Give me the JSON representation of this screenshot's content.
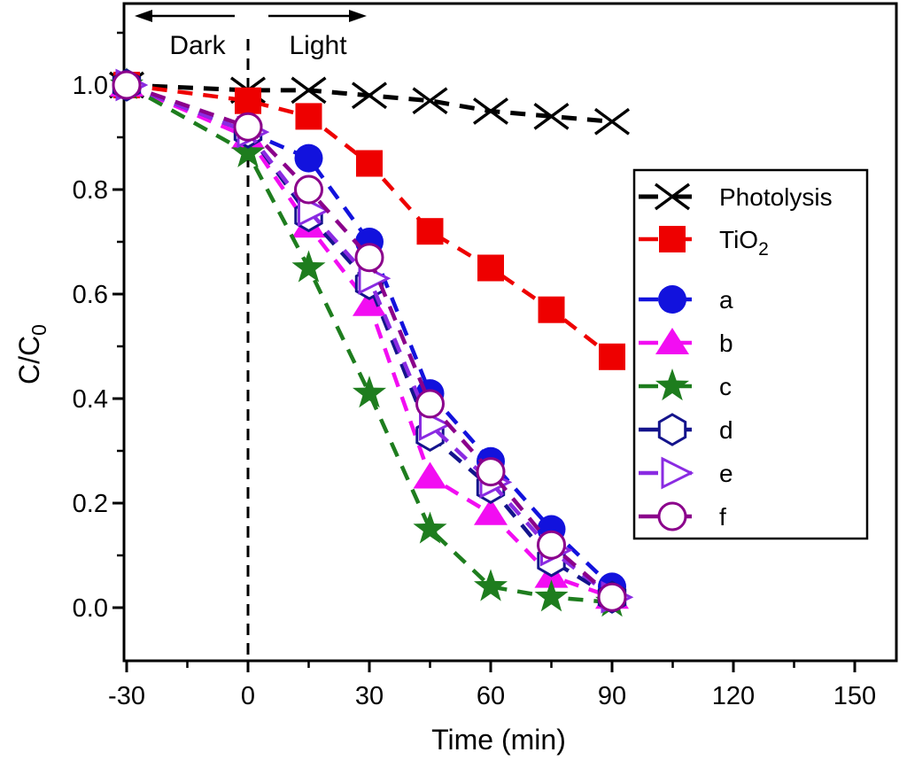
{
  "figure": {
    "background": "#ffffff",
    "frame_color": "#000000"
  },
  "chart_data": {
    "type": "line",
    "title": "",
    "xlabel": "Time (min)",
    "ylabel_main": "C/C",
    "ylabel_sub": "0",
    "xlim": [
      -33,
      160
    ],
    "ylim": [
      -0.1,
      1.15
    ],
    "grid": false,
    "x_major_ticks": [
      -30,
      0,
      30,
      60,
      90,
      120,
      150
    ],
    "x_minor_ticks": [
      -15,
      15,
      45,
      75,
      105,
      135
    ],
    "y_major_ticks": [
      0.0,
      0.2,
      0.4,
      0.6,
      0.8,
      1.0
    ],
    "y_minor_ticks": [
      0.1,
      0.3,
      0.5,
      0.7,
      0.9,
      1.1
    ],
    "annotations": {
      "dark": "Dark",
      "light": "Light",
      "divider_x": 0,
      "dark_arrow_direction": "left",
      "light_arrow_direction": "right"
    },
    "x": [
      -30,
      0,
      15,
      30,
      45,
      60,
      75,
      90
    ],
    "series": [
      {
        "name": "Photolysis",
        "label_main": "Photolysis",
        "label_sub": "",
        "color": "#000000",
        "marker": "cross-x",
        "line_width": 5,
        "values": [
          1.0,
          0.99,
          0.99,
          0.98,
          0.97,
          0.95,
          0.94,
          0.93
        ]
      },
      {
        "name": "TiO2",
        "label_main": "TiO",
        "label_sub": "2",
        "color": "#ee0000",
        "marker": "square-filled",
        "line_width": 4.5,
        "values": [
          1.0,
          0.97,
          0.94,
          0.85,
          0.72,
          0.65,
          0.57,
          0.48
        ]
      },
      {
        "name": "a",
        "label_main": "a",
        "label_sub": "",
        "color": "#1212dd",
        "marker": "circle-filled",
        "line_width": 4.5,
        "values": [
          1.0,
          0.91,
          0.86,
          0.7,
          0.41,
          0.28,
          0.15,
          0.04
        ]
      },
      {
        "name": "b",
        "label_main": "b",
        "label_sub": "",
        "color": "#f20df2",
        "marker": "triangle-up-filled",
        "line_width": 4.5,
        "values": [
          1.0,
          0.9,
          0.73,
          0.58,
          0.25,
          0.18,
          0.06,
          0.02
        ]
      },
      {
        "name": "c",
        "label_main": "c",
        "label_sub": "",
        "color": "#1e7d1e",
        "marker": "star-filled",
        "line_width": 4.5,
        "values": [
          1.0,
          0.87,
          0.65,
          0.41,
          0.15,
          0.04,
          0.02,
          0.01
        ]
      },
      {
        "name": "d",
        "label_main": "d",
        "label_sub": "",
        "color": "#14148c",
        "marker": "hexagon-open",
        "line_width": 4.5,
        "values": [
          1.0,
          0.91,
          0.75,
          0.62,
          0.33,
          0.23,
          0.09,
          0.02
        ]
      },
      {
        "name": "e",
        "label_main": "e",
        "label_sub": "",
        "color": "#8a2be2",
        "marker": "triangle-right-open",
        "line_width": 4.5,
        "values": [
          1.0,
          0.91,
          0.76,
          0.63,
          0.35,
          0.24,
          0.11,
          0.02
        ]
      },
      {
        "name": "f",
        "label_main": "f",
        "label_sub": "",
        "color": "#8b008b",
        "marker": "circle-open",
        "line_width": 4.5,
        "values": [
          1.0,
          0.92,
          0.8,
          0.67,
          0.39,
          0.26,
          0.12,
          0.02
        ]
      }
    ],
    "legend": {
      "position": "right-inside",
      "entries": [
        "Photolysis",
        "TiO2",
        "a",
        "b",
        "c",
        "d",
        "e",
        "f"
      ]
    }
  }
}
